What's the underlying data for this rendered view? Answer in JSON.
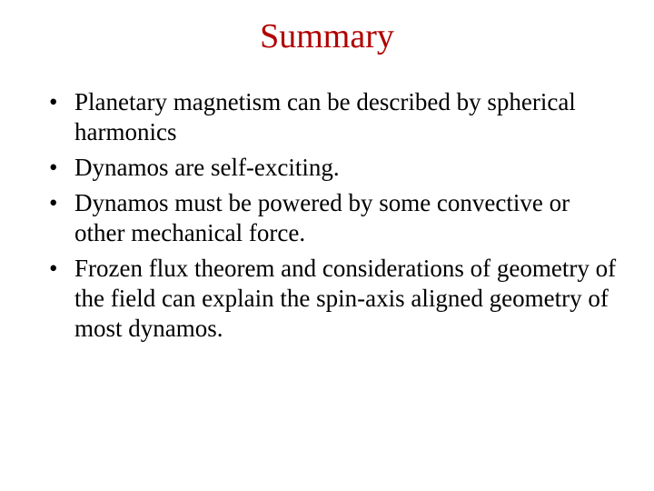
{
  "title": {
    "text": "Summary",
    "color": "#b00000",
    "fontsize": 38
  },
  "body": {
    "color": "#000000",
    "fontsize": 27,
    "bullets": [
      "Planetary magnetism can be described by spherical harmonics",
      "Dynamos are self-exciting.",
      "Dynamos must be powered by some convective or other mechanical force.",
      "Frozen flux theorem and considerations of geometry of the field can explain the spin-axis aligned geometry of most dynamos."
    ]
  },
  "background_color": "#ffffff"
}
